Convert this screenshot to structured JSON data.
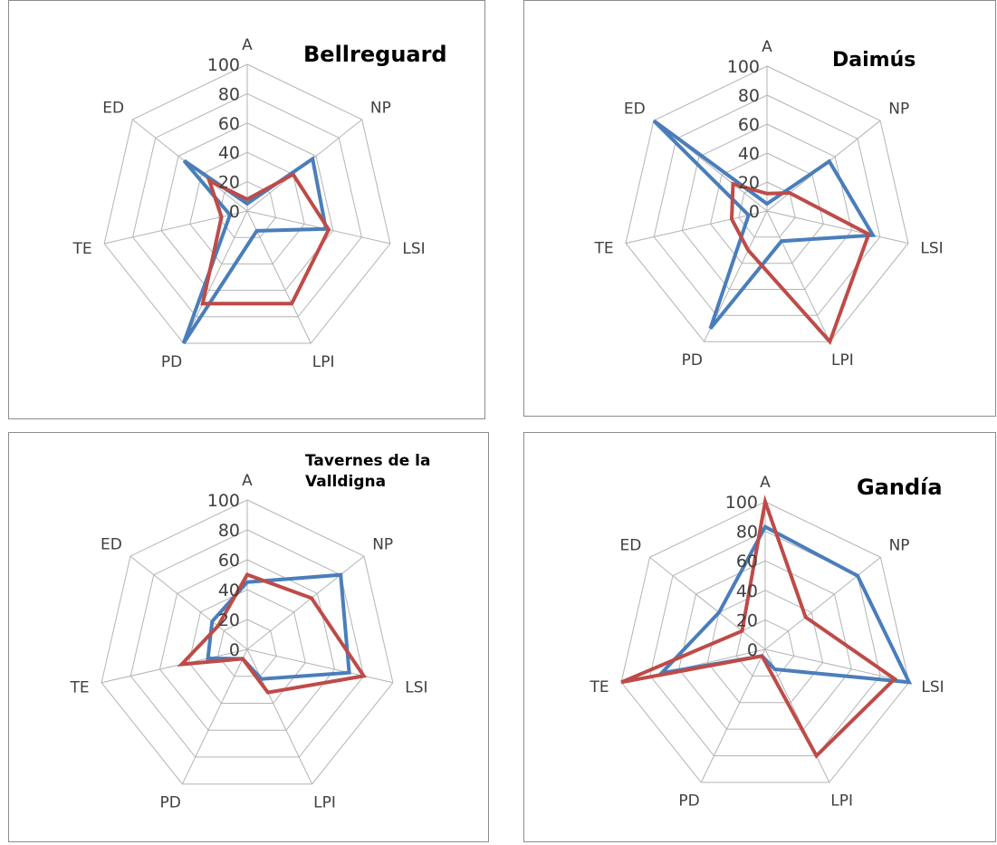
{
  "colors": {
    "series_blue": "#4a7ebb",
    "series_red": "#be4b48"
  },
  "chart_data": [
    {
      "type": "radar",
      "title": "Bellreguard",
      "axes": [
        "A",
        "NP",
        "LSI",
        "LPI",
        "PD",
        "TE",
        "ED"
      ],
      "r_ticks": [
        "0",
        "20",
        "40",
        "60",
        "80",
        "100"
      ],
      "rlim": [
        0,
        100
      ],
      "grid": true,
      "series": [
        {
          "color": "#4a7ebb",
          "values": [
            5,
            57,
            55,
            15,
            100,
            12,
            55
          ]
        },
        {
          "color": "#be4b48",
          "values": [
            8,
            40,
            57,
            70,
            70,
            18,
            33
          ]
        }
      ]
    },
    {
      "type": "radar",
      "title": "Daimús",
      "axes": [
        "A",
        "NP",
        "LSI",
        "LPI",
        "PD",
        "TE",
        "ED"
      ],
      "r_ticks": [
        "0",
        "20",
        "40",
        "60",
        "80",
        "100"
      ],
      "rlim": [
        0,
        100
      ],
      "grid": true,
      "series": [
        {
          "color": "#4a7ebb",
          "values": [
            5,
            55,
            75,
            23,
            90,
            13,
            100
          ]
        },
        {
          "color": "#be4b48",
          "values": [
            12,
            20,
            72,
            100,
            30,
            25,
            30
          ]
        }
      ]
    },
    {
      "type": "radar",
      "title": "Tavernes de la Valldigna",
      "axes": [
        "A",
        "NP",
        "LSI",
        "LPI",
        "PD",
        "TE",
        "ED"
      ],
      "r_ticks": [
        "0",
        "20",
        "40",
        "60",
        "80",
        "100"
      ],
      "rlim": [
        0,
        100
      ],
      "grid": true,
      "series": [
        {
          "color": "#4a7ebb",
          "values": [
            45,
            80,
            70,
            22,
            7,
            27,
            30
          ]
        },
        {
          "color": "#be4b48",
          "values": [
            50,
            55,
            80,
            32,
            7,
            45,
            25
          ]
        }
      ]
    },
    {
      "type": "radar",
      "title": "Gandía",
      "axes": [
        "A",
        "NP",
        "LSI",
        "LPI",
        "PD",
        "TE",
        "ED"
      ],
      "r_ticks": [
        "0",
        "20",
        "40",
        "60",
        "80",
        "100"
      ],
      "rlim": [
        0,
        100
      ],
      "grid": true,
      "series": [
        {
          "color": "#4a7ebb",
          "values": [
            83,
            80,
            100,
            15,
            5,
            72,
            40
          ]
        },
        {
          "color": "#be4b48",
          "values": [
            100,
            35,
            90,
            80,
            5,
            100,
            20
          ]
        }
      ]
    }
  ]
}
